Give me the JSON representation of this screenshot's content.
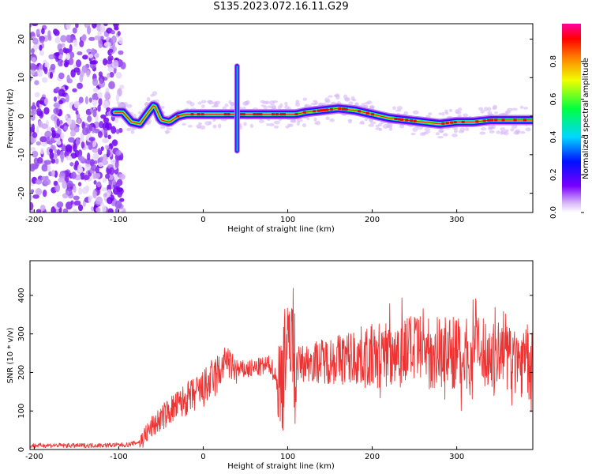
{
  "title": "S135.2023.072.16.11.G29",
  "chart_data": [
    {
      "type": "heatmap",
      "xlabel": "Height of straight line (km)",
      "ylabel": "Frequency (Hz)",
      "xlim": [
        -205,
        390
      ],
      "ylim": [
        -25,
        24
      ],
      "xticks": [
        -200,
        -100,
        0,
        100,
        200,
        300
      ],
      "yticks": [
        -20,
        -10,
        0,
        10,
        20
      ],
      "grid": false,
      "noise_region_x": [
        -205,
        -100
      ],
      "ridge": {
        "x": [
          -105,
          -95,
          -85,
          -75,
          -65,
          -58,
          -50,
          -40,
          -30,
          -20,
          0,
          20,
          38,
          50,
          80,
          110,
          120,
          140,
          160,
          180,
          200,
          220,
          240,
          260,
          280,
          300,
          320,
          340,
          360,
          390
        ],
        "y": [
          1,
          1,
          -1.5,
          -2,
          1,
          3,
          -1,
          -1.5,
          0,
          0.5,
          0.5,
          0.5,
          0.5,
          0.5,
          0.5,
          0.5,
          1,
          1.5,
          2,
          1.5,
          0.5,
          -0.5,
          -1,
          -1.5,
          -2,
          -1.5,
          -1.5,
          -1,
          -1,
          -1
        ]
      },
      "spike": {
        "x": 40,
        "y_range": [
          -9,
          13
        ]
      },
      "colorbar": {
        "label": "Normalized spectral amplitude",
        "range": [
          0,
          1
        ],
        "ticks": [
          "0.0",
          "0.2",
          "0.4",
          "0.6",
          "0.8"
        ],
        "colors": [
          "#ffffff",
          "#d8b8f8",
          "#7a00ff",
          "#0010ff",
          "#00d8ff",
          "#00ff40",
          "#f0ff00",
          "#ff8000",
          "#ff0000",
          "#ff00a0"
        ]
      }
    },
    {
      "type": "line",
      "xlabel": "Height of straight line (km)",
      "ylabel": "SNR (10 * v/v)",
      "xlim": [
        -205,
        390
      ],
      "ylim": [
        0,
        490
      ],
      "xticks": [
        -200,
        -100,
        0,
        100,
        200,
        300
      ],
      "yticks": [
        0,
        100,
        200,
        300,
        400
      ],
      "grid": false,
      "series": [
        {
          "color": "#ee3333",
          "x": [
            -205,
            -180,
            -150,
            -120,
            -90,
            -75,
            -60,
            -40,
            -20,
            0,
            10,
            20,
            28,
            32,
            40,
            60,
            80,
            92,
            97,
            100,
            103,
            108,
            120,
            140,
            160,
            180,
            200,
            220,
            240,
            260,
            280,
            300,
            320,
            340,
            360,
            380,
            390
          ],
          "y": [
            10,
            11,
            10,
            11,
            12,
            20,
            60,
            100,
            130,
            155,
            180,
            200,
            240,
            215,
            205,
            210,
            220,
            150,
            300,
            200,
            350,
            220,
            225,
            230,
            235,
            240,
            240,
            250,
            260,
            250,
            255,
            250,
            250,
            245,
            240,
            230,
            210
          ]
        }
      ]
    }
  ]
}
